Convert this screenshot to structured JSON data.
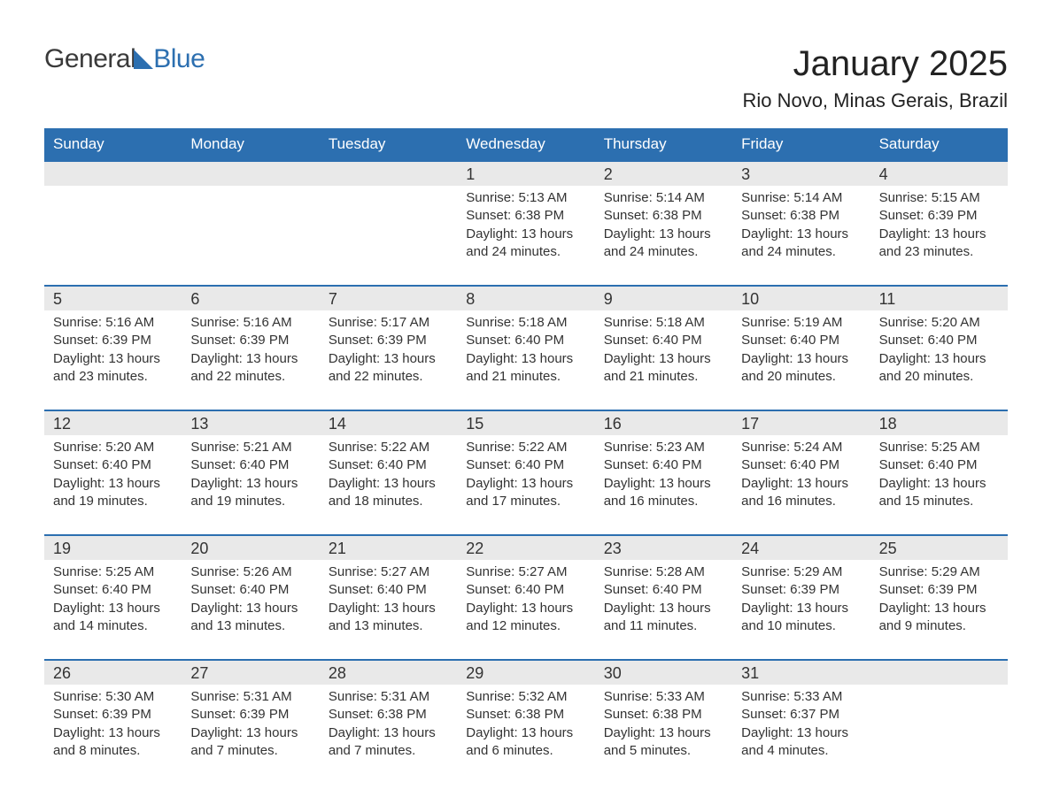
{
  "logo": {
    "text1": "General",
    "text2": "Blue"
  },
  "title": "January 2025",
  "location": "Rio Novo, Minas Gerais, Brazil",
  "colors": {
    "header_bg": "#2c6fb0",
    "header_text": "#ffffff",
    "daynum_bg": "#e9e9e9",
    "border": "#2c6fb0",
    "text": "#333333",
    "page_bg": "#ffffff"
  },
  "fonts": {
    "month_title_pt": 40,
    "location_pt": 22,
    "dow_pt": 17,
    "daynum_pt": 18,
    "body_pt": 15
  },
  "days_of_week": [
    "Sunday",
    "Monday",
    "Tuesday",
    "Wednesday",
    "Thursday",
    "Friday",
    "Saturday"
  ],
  "labels": {
    "sunrise": "Sunrise:",
    "sunset": "Sunset:",
    "daylight": "Daylight:"
  },
  "weeks": [
    [
      {
        "day": "",
        "sunrise": "",
        "sunset": "",
        "daylight": ""
      },
      {
        "day": "",
        "sunrise": "",
        "sunset": "",
        "daylight": ""
      },
      {
        "day": "",
        "sunrise": "",
        "sunset": "",
        "daylight": ""
      },
      {
        "day": "1",
        "sunrise": "5:13 AM",
        "sunset": "6:38 PM",
        "daylight": "13 hours and 24 minutes."
      },
      {
        "day": "2",
        "sunrise": "5:14 AM",
        "sunset": "6:38 PM",
        "daylight": "13 hours and 24 minutes."
      },
      {
        "day": "3",
        "sunrise": "5:14 AM",
        "sunset": "6:38 PM",
        "daylight": "13 hours and 24 minutes."
      },
      {
        "day": "4",
        "sunrise": "5:15 AM",
        "sunset": "6:39 PM",
        "daylight": "13 hours and 23 minutes."
      }
    ],
    [
      {
        "day": "5",
        "sunrise": "5:16 AM",
        "sunset": "6:39 PM",
        "daylight": "13 hours and 23 minutes."
      },
      {
        "day": "6",
        "sunrise": "5:16 AM",
        "sunset": "6:39 PM",
        "daylight": "13 hours and 22 minutes."
      },
      {
        "day": "7",
        "sunrise": "5:17 AM",
        "sunset": "6:39 PM",
        "daylight": "13 hours and 22 minutes."
      },
      {
        "day": "8",
        "sunrise": "5:18 AM",
        "sunset": "6:40 PM",
        "daylight": "13 hours and 21 minutes."
      },
      {
        "day": "9",
        "sunrise": "5:18 AM",
        "sunset": "6:40 PM",
        "daylight": "13 hours and 21 minutes."
      },
      {
        "day": "10",
        "sunrise": "5:19 AM",
        "sunset": "6:40 PM",
        "daylight": "13 hours and 20 minutes."
      },
      {
        "day": "11",
        "sunrise": "5:20 AM",
        "sunset": "6:40 PM",
        "daylight": "13 hours and 20 minutes."
      }
    ],
    [
      {
        "day": "12",
        "sunrise": "5:20 AM",
        "sunset": "6:40 PM",
        "daylight": "13 hours and 19 minutes."
      },
      {
        "day": "13",
        "sunrise": "5:21 AM",
        "sunset": "6:40 PM",
        "daylight": "13 hours and 19 minutes."
      },
      {
        "day": "14",
        "sunrise": "5:22 AM",
        "sunset": "6:40 PM",
        "daylight": "13 hours and 18 minutes."
      },
      {
        "day": "15",
        "sunrise": "5:22 AM",
        "sunset": "6:40 PM",
        "daylight": "13 hours and 17 minutes."
      },
      {
        "day": "16",
        "sunrise": "5:23 AM",
        "sunset": "6:40 PM",
        "daylight": "13 hours and 16 minutes."
      },
      {
        "day": "17",
        "sunrise": "5:24 AM",
        "sunset": "6:40 PM",
        "daylight": "13 hours and 16 minutes."
      },
      {
        "day": "18",
        "sunrise": "5:25 AM",
        "sunset": "6:40 PM",
        "daylight": "13 hours and 15 minutes."
      }
    ],
    [
      {
        "day": "19",
        "sunrise": "5:25 AM",
        "sunset": "6:40 PM",
        "daylight": "13 hours and 14 minutes."
      },
      {
        "day": "20",
        "sunrise": "5:26 AM",
        "sunset": "6:40 PM",
        "daylight": "13 hours and 13 minutes."
      },
      {
        "day": "21",
        "sunrise": "5:27 AM",
        "sunset": "6:40 PM",
        "daylight": "13 hours and 13 minutes."
      },
      {
        "day": "22",
        "sunrise": "5:27 AM",
        "sunset": "6:40 PM",
        "daylight": "13 hours and 12 minutes."
      },
      {
        "day": "23",
        "sunrise": "5:28 AM",
        "sunset": "6:40 PM",
        "daylight": "13 hours and 11 minutes."
      },
      {
        "day": "24",
        "sunrise": "5:29 AM",
        "sunset": "6:39 PM",
        "daylight": "13 hours and 10 minutes."
      },
      {
        "day": "25",
        "sunrise": "5:29 AM",
        "sunset": "6:39 PM",
        "daylight": "13 hours and 9 minutes."
      }
    ],
    [
      {
        "day": "26",
        "sunrise": "5:30 AM",
        "sunset": "6:39 PM",
        "daylight": "13 hours and 8 minutes."
      },
      {
        "day": "27",
        "sunrise": "5:31 AM",
        "sunset": "6:39 PM",
        "daylight": "13 hours and 7 minutes."
      },
      {
        "day": "28",
        "sunrise": "5:31 AM",
        "sunset": "6:38 PM",
        "daylight": "13 hours and 7 minutes."
      },
      {
        "day": "29",
        "sunrise": "5:32 AM",
        "sunset": "6:38 PM",
        "daylight": "13 hours and 6 minutes."
      },
      {
        "day": "30",
        "sunrise": "5:33 AM",
        "sunset": "6:38 PM",
        "daylight": "13 hours and 5 minutes."
      },
      {
        "day": "31",
        "sunrise": "5:33 AM",
        "sunset": "6:37 PM",
        "daylight": "13 hours and 4 minutes."
      },
      {
        "day": "",
        "sunrise": "",
        "sunset": "",
        "daylight": ""
      }
    ]
  ]
}
